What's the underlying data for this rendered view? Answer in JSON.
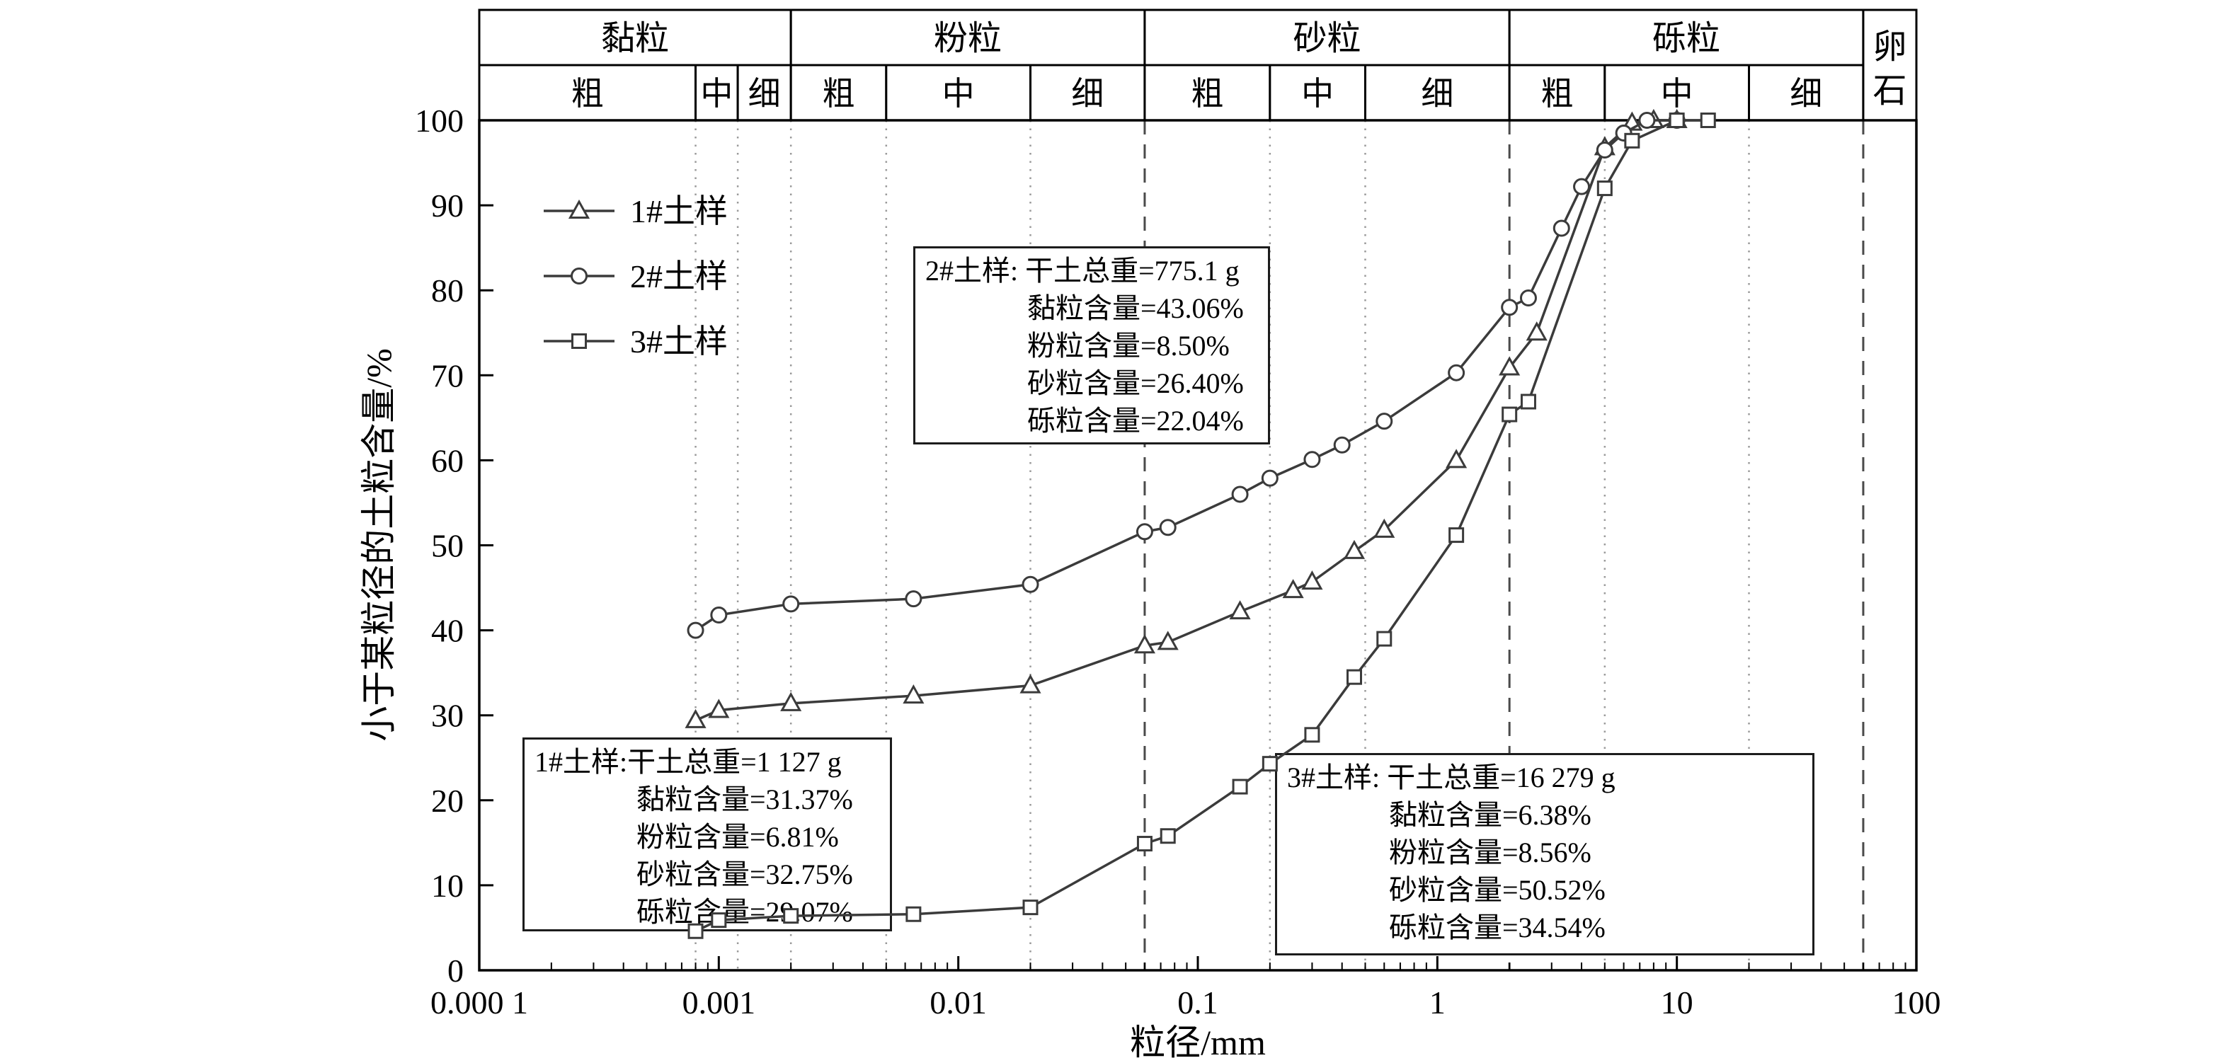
{
  "header": {
    "bands": [
      {
        "label": "黏粒",
        "from": 0.0001,
        "to": 0.002,
        "subs": [
          {
            "label": "粗",
            "from": 0.0001,
            "to": 0.0008
          },
          {
            "label": "中",
            "from": 0.0008,
            "to": 0.0012
          },
          {
            "label": "细",
            "from": 0.0012,
            "to": 0.002
          }
        ]
      },
      {
        "label": "粉粒",
        "from": 0.002,
        "to": 0.06,
        "subs": [
          {
            "label": "粗",
            "from": 0.002,
            "to": 0.005
          },
          {
            "label": "中",
            "from": 0.005,
            "to": 0.02
          },
          {
            "label": "细",
            "from": 0.02,
            "to": 0.06
          }
        ]
      },
      {
        "label": "砂粒",
        "from": 0.06,
        "to": 2,
        "subs": [
          {
            "label": "粗",
            "from": 0.06,
            "to": 0.2
          },
          {
            "label": "中",
            "from": 0.2,
            "to": 0.5
          },
          {
            "label": "细",
            "from": 0.5,
            "to": 2
          }
        ]
      },
      {
        "label": "砾粒",
        "from": 2,
        "to": 60,
        "subs": [
          {
            "label": "粗",
            "from": 2,
            "to": 5
          },
          {
            "label": "中",
            "from": 5,
            "to": 20
          },
          {
            "label": "细",
            "from": 20,
            "to": 60
          }
        ]
      },
      {
        "label": "卵石",
        "from": 60,
        "to": 100,
        "span_rows": true
      }
    ]
  },
  "chart_data": {
    "type": "line",
    "x_scale": "log",
    "xlabel": "粒径/mm",
    "ylabel": "小于某粒径的土粒含量/%",
    "xlim": [
      0.0001,
      100
    ],
    "ylim": [
      0,
      100
    ],
    "grid": "vertical-only",
    "legend_position": "upper-left-inside",
    "x_ticks": [
      {
        "value": 0.0001,
        "label": "0.000 1"
      },
      {
        "value": 0.001,
        "label": "0.001"
      },
      {
        "value": 0.01,
        "label": "0.01"
      },
      {
        "value": 0.1,
        "label": "0.1"
      },
      {
        "value": 1,
        "label": "1"
      },
      {
        "value": 10,
        "label": "10"
      },
      {
        "value": 100,
        "label": "100"
      }
    ],
    "y_ticks": [
      0,
      10,
      20,
      30,
      40,
      50,
      60,
      70,
      80,
      90,
      100
    ],
    "grid_dashed": [
      0.06,
      2,
      60
    ],
    "grid_dotted": [
      0.0008,
      0.0012,
      0.002,
      0.005,
      0.02,
      0.2,
      0.5,
      5,
      20
    ],
    "series": [
      {
        "id": "sample1",
        "name": "1#土样",
        "marker": "triangle",
        "points": [
          [
            0.0008,
            29.4
          ],
          [
            0.001,
            30.6
          ],
          [
            0.002,
            31.4
          ],
          [
            0.0065,
            32.3
          ],
          [
            0.02,
            33.5
          ],
          [
            0.06,
            38.2
          ],
          [
            0.075,
            38.6
          ],
          [
            0.15,
            42.2
          ],
          [
            0.25,
            44.7
          ],
          [
            0.3,
            45.7
          ],
          [
            0.45,
            49.3
          ],
          [
            0.6,
            51.8
          ],
          [
            1.2,
            60.0
          ],
          [
            2,
            70.9
          ],
          [
            2.6,
            75.0
          ],
          [
            5,
            96.8
          ],
          [
            6.5,
            99.7
          ],
          [
            8,
            100
          ],
          [
            10,
            100
          ]
        ]
      },
      {
        "id": "sample2",
        "name": "2#土样",
        "marker": "circle",
        "points": [
          [
            0.0008,
            40.0
          ],
          [
            0.001,
            41.8
          ],
          [
            0.002,
            43.1
          ],
          [
            0.0065,
            43.7
          ],
          [
            0.02,
            45.4
          ],
          [
            0.06,
            51.6
          ],
          [
            0.075,
            52.1
          ],
          [
            0.15,
            56.0
          ],
          [
            0.2,
            57.9
          ],
          [
            0.3,
            60.1
          ],
          [
            0.4,
            61.8
          ],
          [
            0.6,
            64.6
          ],
          [
            1.2,
            70.3
          ],
          [
            2,
            78.0
          ],
          [
            2.4,
            79.1
          ],
          [
            3.3,
            87.3
          ],
          [
            4,
            92.2
          ],
          [
            5,
            96.5
          ],
          [
            6,
            98.5
          ],
          [
            7.5,
            100
          ],
          [
            10,
            100
          ]
        ]
      },
      {
        "id": "sample3",
        "name": "3#土样",
        "marker": "square",
        "points": [
          [
            0.0008,
            4.6
          ],
          [
            0.001,
            5.9
          ],
          [
            0.002,
            6.4
          ],
          [
            0.0065,
            6.6
          ],
          [
            0.02,
            7.4
          ],
          [
            0.06,
            14.9
          ],
          [
            0.075,
            15.8
          ],
          [
            0.15,
            21.6
          ],
          [
            0.2,
            24.3
          ],
          [
            0.3,
            27.7
          ],
          [
            0.45,
            34.5
          ],
          [
            0.6,
            39.0
          ],
          [
            1.2,
            51.2
          ],
          [
            2,
            65.4
          ],
          [
            2.4,
            66.9
          ],
          [
            5,
            92.0
          ],
          [
            6.5,
            97.6
          ],
          [
            10,
            100
          ],
          [
            13.5,
            100
          ]
        ]
      }
    ]
  },
  "legend": {
    "items": [
      {
        "id": "sample1",
        "label": "1#土样",
        "marker": "triangle"
      },
      {
        "id": "sample2",
        "label": "2#土样",
        "marker": "circle"
      },
      {
        "id": "sample3",
        "label": "3#土样",
        "marker": "square"
      }
    ]
  },
  "annotations": {
    "sample1": {
      "lines": [
        "1#土样:干土总重=1 127 g",
        "黏粒含量=31.37%",
        "粉粒含量=6.81%",
        "砂粒含量=32.75%",
        "砾粒含量=29.07%"
      ]
    },
    "sample2": {
      "lines": [
        "2#土样: 干土总重=775.1 g",
        "黏粒含量=43.06%",
        "粉粒含量=8.50%",
        "砂粒含量=26.40%",
        "砾粒含量=22.04%"
      ]
    },
    "sample3": {
      "lines": [
        "3#土样: 干土总重=16 279 g",
        "黏粒含量=6.38%",
        "粉粒含量=8.56%",
        "砂粒含量=50.52%",
        "砾粒含量=34.54%"
      ]
    }
  },
  "colors": {
    "curve": "#3b3b3b",
    "grid_dotted": "#9a9a9a",
    "grid_dashed": "#4a4a4a",
    "border": "#000000",
    "background": "#ffffff"
  }
}
